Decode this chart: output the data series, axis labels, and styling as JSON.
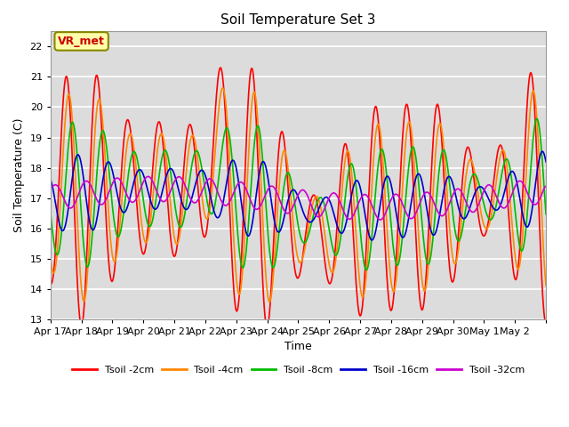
{
  "title": "Soil Temperature Set 3",
  "xlabel": "Time",
  "ylabel": "Soil Temperature (C)",
  "ylim": [
    13.0,
    22.5
  ],
  "yticks": [
    13.0,
    14.0,
    15.0,
    16.0,
    17.0,
    18.0,
    19.0,
    20.0,
    21.0,
    22.0
  ],
  "plot_bg": "#dcdcdc",
  "series": [
    {
      "label": "Tsoil -2cm",
      "color": "#ff0000",
      "lw": 1.2
    },
    {
      "label": "Tsoil -4cm",
      "color": "#ff8800",
      "lw": 1.2
    },
    {
      "label": "Tsoil -8cm",
      "color": "#00bb00",
      "lw": 1.2
    },
    {
      "label": "Tsoil -16cm",
      "color": "#0000cc",
      "lw": 1.2
    },
    {
      "label": "Tsoil -32cm",
      "color": "#cc00cc",
      "lw": 1.2
    }
  ],
  "xtick_labels": [
    "Apr 17",
    "Apr 18",
    "Apr 19",
    "Apr 20",
    "Apr 21",
    "Apr 22",
    "Apr 23",
    "Apr 24",
    "Apr 25",
    "Apr 26",
    "Apr 27",
    "Apr 28",
    "Apr 29",
    "Apr 30",
    "May 1",
    "May 2"
  ],
  "vr_met_label": "VR_met",
  "vr_met_color": "#cc0000",
  "vr_met_bg": "#ffffaa",
  "vr_met_border": "#888800"
}
